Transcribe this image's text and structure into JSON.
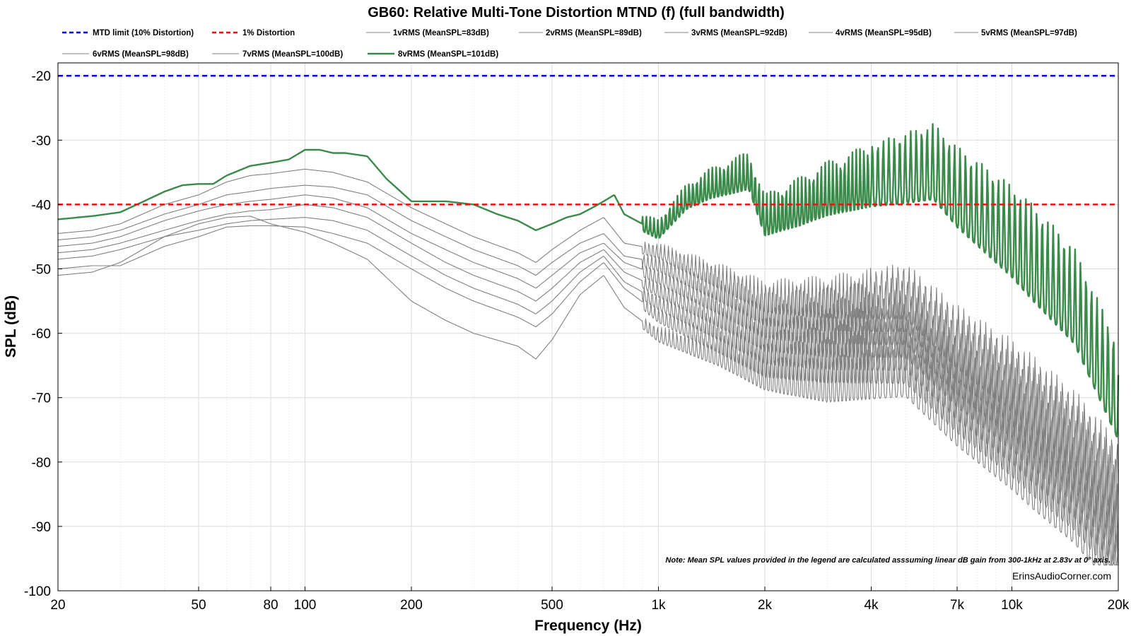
{
  "chart_data": {
    "type": "line",
    "title": "GB60: Relative Multi-Tone Distortion MTND (f) (full bandwidth)",
    "xlabel": "Frequency (Hz)",
    "ylabel": "SPL (dB)",
    "xscale": "log",
    "xlim": [
      20,
      20000
    ],
    "ylim": [
      -100,
      -18
    ],
    "grid": true,
    "legend_position": "top",
    "x_ticks": [
      20,
      50,
      80,
      100,
      200,
      500,
      1000,
      2000,
      4000,
      7000,
      10000,
      20000
    ],
    "x_tick_labels": [
      "20",
      "50",
      "80",
      "100",
      "200",
      "500",
      "1k",
      "2k",
      "4k",
      "7k",
      "10k",
      "20k"
    ],
    "y_ticks": [
      -20,
      -30,
      -40,
      -50,
      -60,
      -70,
      -80,
      -90,
      -100
    ],
    "y_tick_labels": [
      "-20",
      "-30",
      "-40",
      "-50",
      "-60",
      "-70",
      "-80",
      "-90",
      "-100"
    ],
    "reference_lines": [
      {
        "name": "MTD limit (10% Distortion)",
        "value": -20,
        "color": "#0000ee",
        "style": "dashed"
      },
      {
        "name": "1% Distortion",
        "value": -40,
        "color": "#ee1111",
        "style": "dashed"
      }
    ],
    "series": [
      {
        "name": "1vRMS (MeanSPL=83dB)",
        "color": "#808080",
        "x": [
          20,
          25,
          30,
          40,
          50,
          60,
          70,
          80,
          100,
          120,
          150,
          200,
          250,
          300,
          400,
          450,
          500,
          600,
          700,
          800,
          1000,
          1500,
          2000,
          3000,
          5000,
          7000,
          10000,
          15000,
          20000
        ],
        "y": [
          -51,
          -50.5,
          -49,
          -45,
          -43,
          -42,
          -41.8,
          -43,
          -44.3,
          -46,
          -48.5,
          -55,
          -58,
          -60,
          -62,
          -64,
          -61,
          -54,
          -51,
          -56,
          -60,
          -63,
          -66,
          -67,
          -65,
          -72,
          -78,
          -86,
          -94
        ]
      },
      {
        "name": "2vRMS (MeanSPL=89dB)",
        "color": "#808080",
        "x": [
          20,
          25,
          30,
          40,
          50,
          60,
          70,
          80,
          100,
          120,
          150,
          200,
          250,
          300,
          400,
          450,
          500,
          600,
          700,
          800,
          1000,
          1500,
          2000,
          3000,
          5000,
          7000,
          10000,
          15000,
          20000
        ],
        "y": [
          -50,
          -49.5,
          -49.5,
          -46.5,
          -45,
          -43.5,
          -43.3,
          -43.3,
          -43.5,
          -44.5,
          -46,
          -50,
          -53,
          -55,
          -57.5,
          -59,
          -57,
          -52,
          -49,
          -53,
          -57,
          -61,
          -64,
          -64,
          -63,
          -70,
          -76,
          -84,
          -92
        ]
      },
      {
        "name": "3vRMS (MeanSPL=92dB)",
        "color": "#808080",
        "x": [
          20,
          25,
          30,
          40,
          50,
          60,
          70,
          80,
          100,
          120,
          150,
          200,
          250,
          300,
          400,
          450,
          500,
          600,
          700,
          800,
          1000,
          1500,
          2000,
          3000,
          5000,
          7000,
          10000,
          15000,
          20000
        ],
        "y": [
          -48.5,
          -48,
          -47,
          -45,
          -44,
          -43,
          -42.5,
          -42.3,
          -42,
          -42.5,
          -44,
          -48,
          -51,
          -53,
          -55.5,
          -57,
          -55,
          -50.5,
          -48,
          -52,
          -55,
          -59,
          -62,
          -62,
          -61,
          -68,
          -74,
          -82,
          -90
        ]
      },
      {
        "name": "4vRMS (MeanSPL=95dB)",
        "color": "#808080",
        "x": [
          20,
          25,
          30,
          40,
          50,
          60,
          70,
          80,
          100,
          120,
          150,
          200,
          250,
          300,
          400,
          450,
          500,
          600,
          700,
          800,
          1000,
          1500,
          2000,
          3000,
          5000,
          7000,
          10000,
          15000,
          20000
        ],
        "y": [
          -47.5,
          -47,
          -46,
          -44,
          -42.5,
          -41.5,
          -41,
          -40.8,
          -40,
          -40.5,
          -42,
          -46,
          -49,
          -51,
          -53.5,
          -55,
          -53,
          -49,
          -47,
          -50.5,
          -53,
          -57,
          -60,
          -60,
          -59,
          -66,
          -72,
          -80,
          -88
        ]
      },
      {
        "name": "5vRMS (MeanSPL=97dB)",
        "color": "#808080",
        "x": [
          20,
          25,
          30,
          40,
          50,
          60,
          70,
          80,
          100,
          120,
          150,
          200,
          250,
          300,
          400,
          450,
          500,
          600,
          700,
          800,
          1000,
          1500,
          2000,
          3000,
          5000,
          7000,
          10000,
          15000,
          20000
        ],
        "y": [
          -46.5,
          -46,
          -45,
          -42.5,
          -41,
          -40,
          -39.5,
          -39.2,
          -38.5,
          -39,
          -40.5,
          -44.5,
          -47,
          -49,
          -51.5,
          -53,
          -51,
          -47.5,
          -46,
          -49,
          -51,
          -55,
          -58,
          -58,
          -57,
          -64,
          -70,
          -78,
          -86
        ]
      },
      {
        "name": "6vRMS (MeanSPL=98dB)",
        "color": "#808080",
        "x": [
          20,
          25,
          30,
          40,
          50,
          60,
          70,
          80,
          100,
          120,
          150,
          200,
          250,
          300,
          400,
          450,
          500,
          600,
          700,
          800,
          1000,
          1500,
          2000,
          3000,
          5000,
          7000,
          10000,
          15000,
          20000
        ],
        "y": [
          -45.5,
          -45,
          -44,
          -41.5,
          -40,
          -38.5,
          -38,
          -37.5,
          -37,
          -37.3,
          -38.5,
          -42.5,
          -45,
          -47,
          -49.5,
          -51,
          -49,
          -46,
          -44.5,
          -48,
          -49,
          -53,
          -56,
          -56,
          -55,
          -62,
          -68,
          -76,
          -84
        ]
      },
      {
        "name": "7vRMS (MeanSPL=100dB)",
        "color": "#808080",
        "x": [
          20,
          25,
          30,
          40,
          50,
          60,
          70,
          80,
          100,
          120,
          150,
          200,
          250,
          300,
          400,
          450,
          500,
          600,
          700,
          800,
          1000,
          1500,
          2000,
          3000,
          5000,
          7000,
          10000,
          15000,
          20000
        ],
        "y": [
          -44.5,
          -44,
          -43,
          -40,
          -38.5,
          -36.5,
          -35.5,
          -35.2,
          -34.5,
          -35,
          -36.5,
          -40.5,
          -43,
          -45,
          -47.5,
          -49,
          -47,
          -44,
          -42,
          -46,
          -47,
          -51,
          -54,
          -54,
          -53,
          -60,
          -66,
          -74,
          -82
        ]
      },
      {
        "name": "8vRMS (MeanSPL=101dB)",
        "color": "#3a8a4a",
        "x": [
          20,
          25,
          30,
          35,
          40,
          45,
          50,
          55,
          60,
          70,
          80,
          90,
          100,
          110,
          120,
          130,
          150,
          170,
          200,
          250,
          300,
          350,
          400,
          450,
          500,
          550,
          600,
          650,
          700,
          750,
          800,
          900,
          1000,
          1200,
          1400,
          1600,
          1800,
          2000,
          2500,
          3000,
          4000,
          5000,
          6000,
          7000,
          10000,
          15000,
          20000
        ],
        "y": [
          -42.3,
          -41.8,
          -41.2,
          -39.5,
          -38,
          -37,
          -36.8,
          -36.8,
          -35.5,
          -34,
          -33.5,
          -33,
          -31.5,
          -31.5,
          -32,
          -32,
          -32.5,
          -36,
          -39.5,
          -39.5,
          -40,
          -41.5,
          -42.5,
          -44,
          -43,
          -42,
          -41.5,
          -40.5,
          -39.5,
          -38.5,
          -41.5,
          -43,
          -44,
          -39,
          -37,
          -36,
          -35,
          -42,
          -40,
          -38,
          -36,
          -35,
          -34,
          -38,
          -45,
          -55,
          -70
        ]
      }
    ]
  },
  "legend_labels": {
    "r1": [
      "MTD limit (10% Distortion)",
      "1% Distortion",
      "1vRMS (MeanSPL=83dB)",
      "2vRMS (MeanSPL=89dB)",
      "3vRMS (MeanSPL=92dB)",
      "4vRMS (MeanSPL=95dB)",
      "5vRMS (MeanSPL=97dB)"
    ],
    "r2": [
      "6vRMS (MeanSPL=98dB)",
      "7vRMS (MeanSPL=100dB)",
      "8vRMS (MeanSPL=101dB)"
    ]
  },
  "note": "Note: Mean SPL values provided in the legend are calculated asssuming linear dB gain from 300-1kHz at 2.83v at 0° axis.",
  "watermark": "ErinsAudioCorner.com",
  "colors": {
    "grid": "#dcdcdc",
    "gray_series": "#808080",
    "green_series": "#3a8a4a",
    "blue_ref": "#0000ee",
    "red_ref": "#ee1111"
  }
}
